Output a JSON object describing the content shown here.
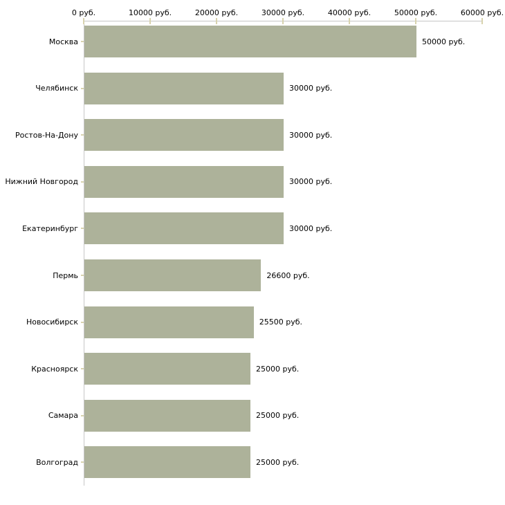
{
  "chart_data": {
    "type": "bar",
    "orientation": "horizontal",
    "title": "",
    "xlabel": "",
    "ylabel": "",
    "xlim": [
      0,
      60000
    ],
    "grid": false,
    "legend": false,
    "unit": "руб.",
    "categories": [
      "Москва",
      "Челябинск",
      "Ростов-На-Дону",
      "Нижний Новгород",
      "Екатеринбург",
      "Пермь",
      "Новосибирск",
      "Красноярск",
      "Самара",
      "Волгоград"
    ],
    "values": [
      50000,
      30000,
      30000,
      30000,
      30000,
      26600,
      25500,
      25000,
      25000,
      25000
    ],
    "value_labels": [
      "50000 руб.",
      "30000 руб.",
      "30000 руб.",
      "30000 руб.",
      "30000 руб.",
      "26600 руб.",
      "25500 руб.",
      "25000 руб.",
      "25000 руб.",
      "25000 руб."
    ],
    "x_ticks": [
      0,
      10000,
      20000,
      30000,
      40000,
      50000,
      60000
    ],
    "x_tick_labels": [
      "0 руб.",
      "10000 руб.",
      "20000 руб.",
      "30000 руб.",
      "40000 руб.",
      "50000 руб.",
      "60000 руб."
    ],
    "colors": {
      "bar": "#adb29a",
      "axis": "#c6c6c6",
      "tick": "#d8d3ae",
      "text": "#000000",
      "background": "#ffffff"
    }
  }
}
